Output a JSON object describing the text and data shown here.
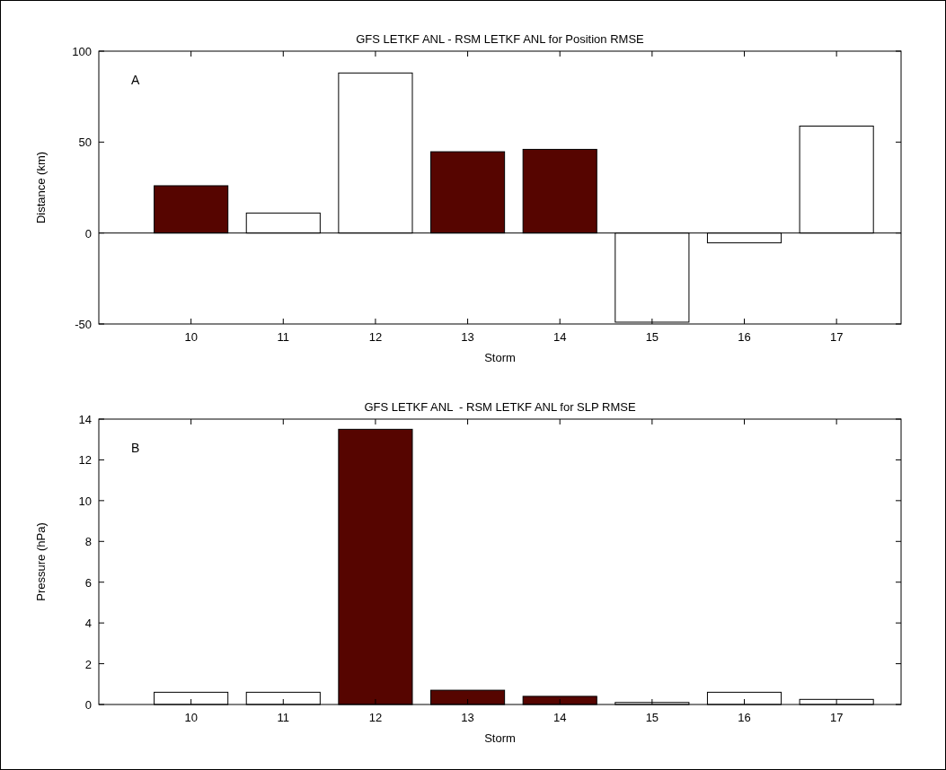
{
  "chart_data": [
    {
      "type": "bar",
      "title": "GFS LETKF ANL - RSM LETKF ANL for Position RMSE",
      "xlabel": "Storm",
      "ylabel": "Distance (km)",
      "annotations": [
        "A"
      ],
      "x": [
        10,
        11,
        12,
        13,
        14,
        15,
        16,
        17
      ],
      "values": [
        26,
        11,
        88,
        44.7,
        46,
        -49,
        -5.4,
        58.8
      ],
      "colors": [
        "#560500",
        "#ffffff",
        "#ffffff",
        "#560500",
        "#560500",
        "#ffffff",
        "#ffffff",
        "#ffffff"
      ],
      "xlim": [
        9,
        17.7
      ],
      "xticks": [
        10,
        11,
        12,
        13,
        14,
        15,
        16,
        17
      ],
      "ylim": [
        -50,
        100
      ],
      "yticks": [
        -50,
        0,
        50,
        100
      ]
    },
    {
      "type": "bar",
      "title": "GFS LETKF ANL  - RSM LETKF ANL for SLP RMSE",
      "xlabel": "Storm",
      "ylabel": "Pressure (hPa)",
      "annotations": [
        "B"
      ],
      "x": [
        10,
        11,
        12,
        13,
        14,
        15,
        16,
        17
      ],
      "values": [
        0.6,
        0.6,
        13.5,
        0.7,
        0.4,
        0.1,
        0.6,
        0.25
      ],
      "colors": [
        "#ffffff",
        "#ffffff",
        "#560500",
        "#560500",
        "#560500",
        "#ffffff",
        "#ffffff",
        "#ffffff"
      ],
      "xlim": [
        9,
        17.7
      ],
      "xticks": [
        10,
        11,
        12,
        13,
        14,
        15,
        16,
        17
      ],
      "ylim": [
        0,
        14
      ],
      "yticks": [
        0,
        2,
        4,
        6,
        8,
        10,
        12,
        14
      ]
    }
  ]
}
